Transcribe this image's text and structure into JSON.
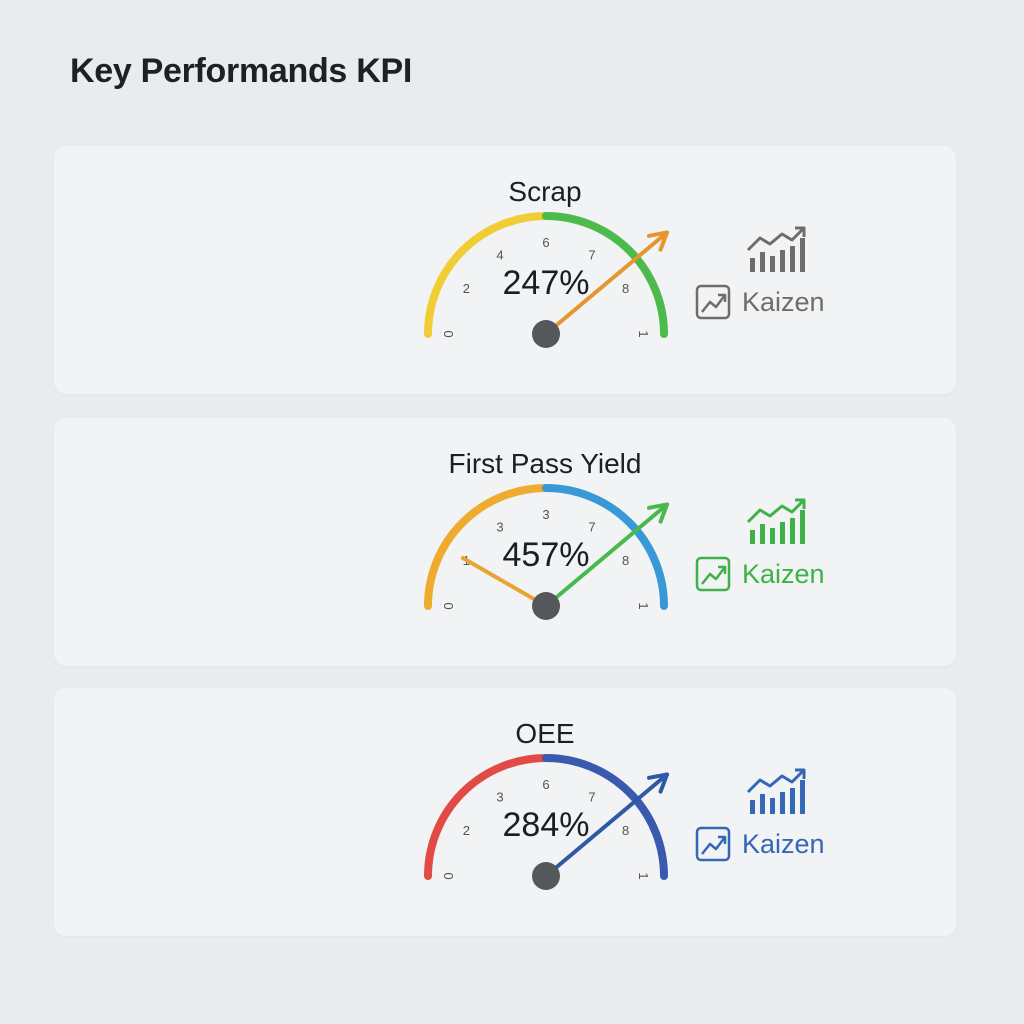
{
  "page": {
    "title": "Key Performands KPI"
  },
  "kpis": [
    {
      "title": "Scrap",
      "value": "247%",
      "ticks": [
        "0",
        "2",
        "4",
        "6",
        "7",
        "8",
        "1"
      ],
      "arc_colors": [
        "#f0cd34",
        "#4cba4c"
      ],
      "needle_color": "#e5962c",
      "kaizen_label": "Kaizen",
      "accent": "#6d6d6d",
      "icons": [
        "trend-chart-icon",
        "trend-arrow-icon"
      ]
    },
    {
      "title": "First Pass Yield",
      "value": "457%",
      "ticks": [
        "0",
        "1",
        "3",
        "3",
        "7",
        "8",
        "1"
      ],
      "arc_colors": [
        "#eeab2e",
        "#3899d6"
      ],
      "needle_color": "#49b94f",
      "secondary_needle_color": "#e8a332",
      "kaizen_label": "Kaizen",
      "accent": "#3fb247",
      "icons": [
        "trend-chart-icon",
        "trend-arrow-icon"
      ]
    },
    {
      "title": "OEE",
      "value": "284%",
      "ticks": [
        "0",
        "2",
        "3",
        "6",
        "7",
        "8",
        "1"
      ],
      "arc_colors": [
        "#e24b45",
        "#3a5ab0"
      ],
      "needle_color": "#2f58a6",
      "kaizen_label": "Kaizen",
      "accent": "#3467b5",
      "icons": [
        "trend-chart-icon",
        "trend-arrow-icon"
      ]
    }
  ]
}
